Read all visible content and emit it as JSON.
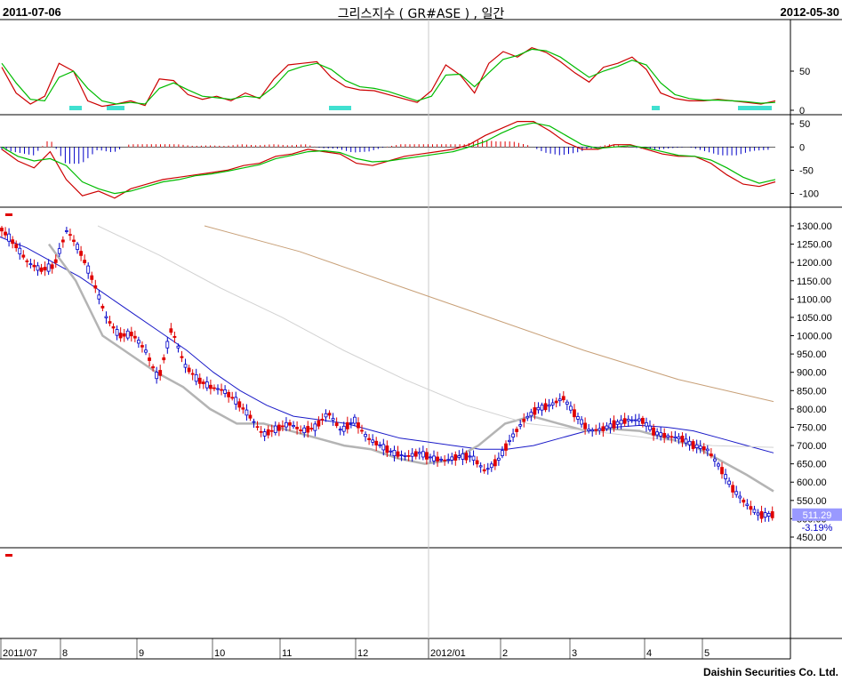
{
  "header": {
    "start_date": "2011-07-06",
    "title": "그리스지수 ( GR#ASE ) , 일간",
    "end_date": "2012-05-30"
  },
  "footer": {
    "company": "Daishin Securities Co. Ltd."
  },
  "colors": {
    "up": "#e00000",
    "down": "#0000c8",
    "ma_blue": "#1a1ac8",
    "ma_gray": "#b4b4b4",
    "ma_lightgray": "#d2d2d2",
    "ma_brown": "#c8a078",
    "osc_red": "#cc0000",
    "osc_green": "#00bb00",
    "fill_cyan": "#40e0d0",
    "price_box": "#9999ff"
  },
  "chart_data": [
    {
      "type": "line",
      "name": "stochastic",
      "ylim": [
        0,
        100
      ],
      "yticks": [
        0,
        50
      ],
      "series": [
        {
          "color": "red",
          "values": [
            55,
            22,
            8,
            18,
            60,
            50,
            12,
            5,
            8,
            12,
            6,
            40,
            38,
            20,
            14,
            18,
            12,
            22,
            15,
            40,
            58,
            60,
            62,
            42,
            30,
            26,
            25,
            20,
            15,
            10,
            25,
            58,
            45,
            22,
            60,
            75,
            68,
            80,
            74,
            62,
            48,
            36,
            55,
            60,
            68,
            52,
            22,
            15,
            12,
            12,
            14,
            12,
            10,
            8,
            12
          ]
        },
        {
          "color": "green",
          "values": [
            60,
            35,
            14,
            12,
            42,
            50,
            28,
            12,
            8,
            10,
            8,
            28,
            35,
            26,
            18,
            16,
            14,
            18,
            16,
            30,
            50,
            56,
            60,
            52,
            38,
            30,
            28,
            24,
            18,
            12,
            18,
            45,
            46,
            30,
            48,
            65,
            70,
            78,
            76,
            68,
            55,
            42,
            50,
            56,
            64,
            58,
            35,
            20,
            15,
            13,
            13,
            12,
            11,
            9,
            10
          ]
        }
      ]
    },
    {
      "type": "line",
      "name": "MACD",
      "ylim": [
        -120,
        60
      ],
      "yticks": [
        50,
        0,
        -50,
        -100
      ],
      "series": [
        {
          "color": "red",
          "values": [
            -5,
            -30,
            -45,
            -10,
            -70,
            -105,
            -95,
            -110,
            -90,
            -80,
            -70,
            -65,
            -60,
            -55,
            -50,
            -40,
            -35,
            -20,
            -15,
            -5,
            -10,
            -15,
            -35,
            -40,
            -30,
            -20,
            -15,
            -10,
            -5,
            5,
            25,
            40,
            55,
            55,
            35,
            10,
            -5,
            -5,
            5,
            5,
            -5,
            -15,
            -20,
            -20,
            -35,
            -60,
            -80,
            -85,
            -75
          ]
        },
        {
          "color": "green",
          "values": [
            0,
            -20,
            -30,
            -25,
            -40,
            -75,
            -90,
            -100,
            -95,
            -85,
            -75,
            -70,
            -62,
            -58,
            -52,
            -45,
            -38,
            -25,
            -18,
            -10,
            -8,
            -12,
            -25,
            -32,
            -30,
            -25,
            -20,
            -15,
            -10,
            0,
            12,
            30,
            45,
            52,
            45,
            25,
            5,
            -3,
            0,
            3,
            -2,
            -10,
            -18,
            -20,
            -28,
            -45,
            -65,
            -78,
            -70
          ]
        }
      ]
    },
    {
      "type": "candlestick",
      "name": "price",
      "x_labels": [
        "2011/07",
        "8",
        "9",
        "10",
        "11",
        "12",
        "2012/01",
        "2",
        "3",
        "4",
        "5"
      ],
      "ylim": [
        450,
        1300
      ],
      "yticks": [
        450,
        500,
        550,
        600,
        650,
        700,
        750,
        800,
        850,
        900,
        950,
        1000,
        1050,
        1100,
        1150,
        1200,
        1250,
        1300
      ],
      "last_price": "511.29",
      "change_pct": "-3.19%",
      "close": [
        1290,
        1250,
        1200,
        1180,
        1190,
        1290,
        1230,
        1150,
        1050,
        1000,
        1005,
        960,
        880,
        1020,
        920,
        880,
        860,
        850,
        820,
        780,
        730,
        745,
        760,
        740,
        750,
        790,
        740,
        770,
        720,
        700,
        680,
        670,
        680,
        665,
        660,
        670,
        670,
        630,
        660,
        720,
        770,
        800,
        810,
        830,
        780,
        740,
        745,
        760,
        770,
        770,
        735,
        725,
        720,
        700,
        690,
        640,
        580,
        540,
        510,
        511
      ],
      "moving_averages": [
        {
          "color": "blue",
          "values": [
            1270,
            1240,
            1200,
            1160,
            1110,
            1060,
            1010,
            960,
            900,
            850,
            810,
            780,
            770,
            760,
            740,
            720,
            710,
            700,
            690,
            690,
            700,
            720,
            740,
            750,
            755,
            750,
            740,
            720,
            700,
            680
          ]
        },
        {
          "color": "gray",
          "values": [
            1250,
            1150,
            1000,
            950,
            900,
            860,
            800,
            760,
            760,
            740,
            720,
            700,
            690,
            665,
            650,
            660,
            700,
            760,
            780,
            760,
            740,
            745,
            740,
            720,
            700,
            660,
            620,
            575
          ]
        },
        {
          "color": "lightgray",
          "values": [
            1300,
            1220,
            1130,
            1050,
            960,
            880,
            810,
            760,
            740,
            720,
            700,
            695
          ]
        },
        {
          "color": "brown",
          "values": [
            1300,
            1230,
            1140,
            1050,
            960,
            880,
            820
          ]
        }
      ]
    }
  ]
}
